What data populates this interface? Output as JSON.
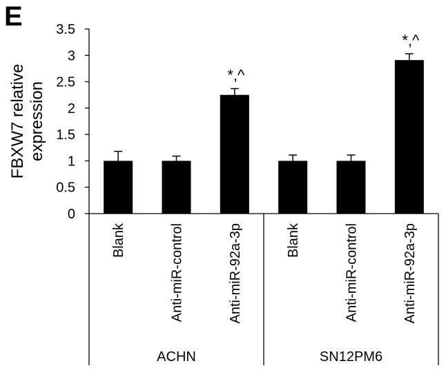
{
  "panel_letter": "E",
  "chart_data": {
    "type": "bar",
    "title": "",
    "xlabel": "",
    "ylabel_lines": [
      "FBXW7 relative",
      "expression"
    ],
    "ylim": [
      0,
      3.5
    ],
    "yticks": [
      0,
      0.5,
      1,
      1.5,
      2,
      2.5,
      3,
      3.5
    ],
    "ytick_labels": [
      "0",
      "0.5",
      "1",
      "1.5",
      "2",
      "2.5",
      "3",
      "3.5"
    ],
    "grid": false,
    "categories": [
      "Blank",
      "Anti-miR-control",
      "Anti-miR-92a-3p",
      "Blank",
      "Anti-miR-control",
      "Anti-miR-92a-3p"
    ],
    "values": [
      1.0,
      1.0,
      2.25,
      1.0,
      1.0,
      2.91
    ],
    "errors": [
      0.18,
      0.09,
      0.12,
      0.11,
      0.11,
      0.12
    ],
    "annotations": [
      "",
      "",
      "*,^",
      "",
      "",
      "*,^"
    ],
    "groups": [
      {
        "label": "ACHN",
        "start": 0,
        "end": 2
      },
      {
        "label": "SN12PM6",
        "start": 3,
        "end": 5
      }
    ],
    "bar_color": "#000000"
  }
}
